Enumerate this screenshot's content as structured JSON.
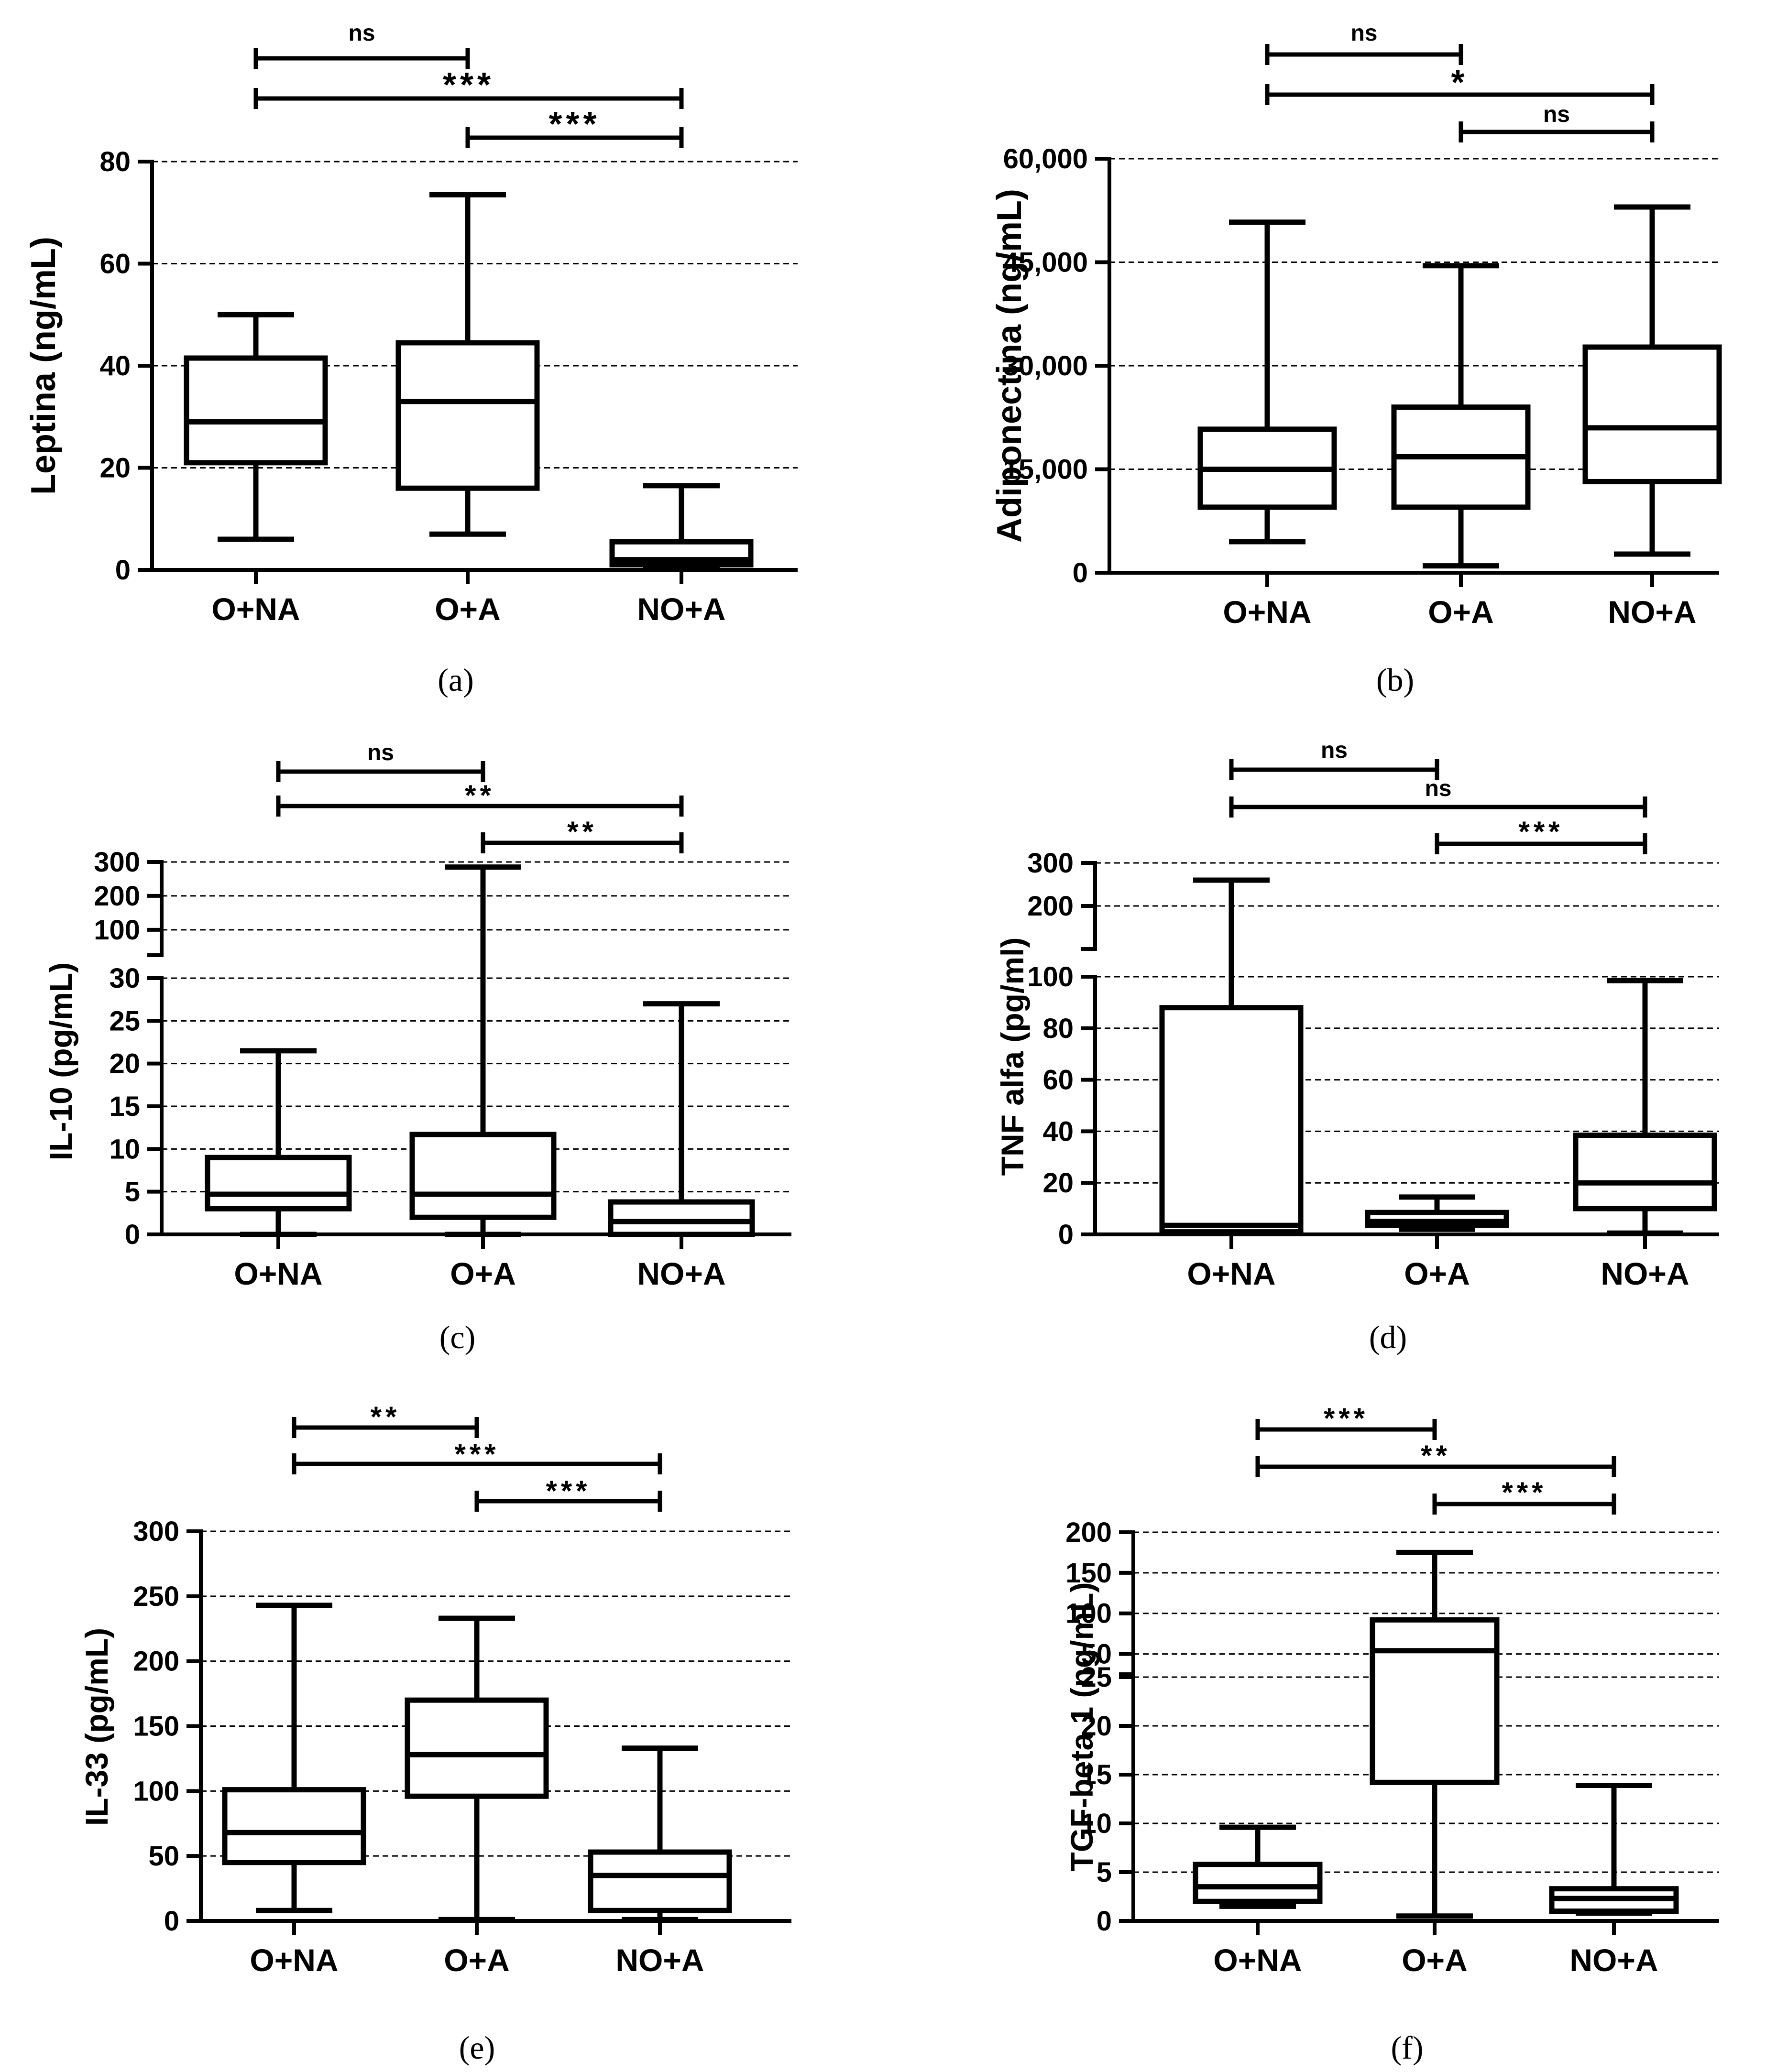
{
  "chart_data": [
    {
      "type": "box",
      "panel": "(a)",
      "ylabel": "Leptina (ng/mL)",
      "categories": [
        "O+NA",
        "O+A",
        "NO+A"
      ],
      "yticks": [
        0,
        20,
        40,
        60,
        80
      ],
      "ylim": [
        0,
        80
      ],
      "grid": true,
      "boxes": [
        {
          "min": 6,
          "q1": 21,
          "median": 29,
          "q3": 41.5,
          "max": 50
        },
        {
          "min": 7,
          "q1": 16,
          "median": 33,
          "q3": 44.5,
          "max": 73.5
        },
        {
          "min": 0.5,
          "q1": 1,
          "median": 2,
          "q3": 5.5,
          "max": 16.5
        }
      ],
      "significance": [
        {
          "from": 0,
          "to": 1,
          "label": "ns"
        },
        {
          "from": 0,
          "to": 2,
          "label": "***"
        },
        {
          "from": 1,
          "to": 2,
          "label": "***"
        }
      ]
    },
    {
      "type": "box",
      "panel": "(b)",
      "ylabel": "Adiponectina (ng/mL)",
      "categories": [
        "O+NA",
        "O+A",
        "NO+A"
      ],
      "yticks": [
        0,
        15000,
        30000,
        45000,
        60000
      ],
      "ytick_labels": [
        "0",
        "15,000",
        "30,000",
        "45,000",
        "60,000"
      ],
      "ylim": [
        0,
        60000
      ],
      "grid": true,
      "boxes": [
        {
          "min": 4500,
          "q1": 9500,
          "median": 15000,
          "q3": 20800,
          "max": 50800
        },
        {
          "min": 1000,
          "q1": 9500,
          "median": 16800,
          "q3": 24000,
          "max": 44500
        },
        {
          "min": 2700,
          "q1": 13200,
          "median": 21000,
          "q3": 32700,
          "max": 53000
        }
      ],
      "significance": [
        {
          "from": 0,
          "to": 1,
          "label": "ns"
        },
        {
          "from": 0,
          "to": 2,
          "label": "*"
        },
        {
          "from": 1,
          "to": 2,
          "label": "ns"
        }
      ]
    },
    {
      "type": "box",
      "panel": "(c)",
      "ylabel": "IL-10 (pg/mL)",
      "categories": [
        "O+NA",
        "O+A",
        "NO+A"
      ],
      "segments": [
        {
          "yticks": [
            0,
            5,
            10,
            15,
            20,
            25,
            30
          ],
          "ylim": [
            0,
            30
          ]
        },
        {
          "yticks": [
            100,
            200,
            300
          ],
          "ylim": [
            25,
            300
          ]
        }
      ],
      "grid": true,
      "boxes": [
        {
          "min": 0,
          "q1": 3,
          "median": 4.7,
          "q3": 9,
          "max": 21.5
        },
        {
          "min": 0,
          "q1": 2,
          "median": 4.7,
          "q3": 11.7,
          "max": 285
        },
        {
          "min": 0,
          "q1": 0,
          "median": 1.5,
          "q3": 3.8,
          "max": 27
        }
      ],
      "significance": [
        {
          "from": 0,
          "to": 1,
          "label": "ns"
        },
        {
          "from": 0,
          "to": 2,
          "label": "**"
        },
        {
          "from": 1,
          "to": 2,
          "label": "**"
        }
      ]
    },
    {
      "type": "box",
      "panel": "(d)",
      "ylabel": "TNF alfa (pg/ml)",
      "categories": [
        "O+NA",
        "O+A",
        "NO+A"
      ],
      "segments": [
        {
          "yticks": [
            0,
            20,
            40,
            60,
            80,
            100
          ],
          "ylim": [
            0,
            100
          ]
        },
        {
          "yticks": [
            200,
            300
          ],
          "ylim": [
            100,
            300
          ]
        }
      ],
      "grid": true,
      "boxes": [
        {
          "min": 0.5,
          "q1": 1,
          "median": 3.5,
          "q3": 88,
          "max": 260
        },
        {
          "min": 2,
          "q1": 3.5,
          "median": 5,
          "q3": 8.5,
          "max": 14.5
        },
        {
          "min": 0.5,
          "q1": 10,
          "median": 20,
          "q3": 38.5,
          "max": 98.5
        }
      ],
      "significance": [
        {
          "from": 0,
          "to": 1,
          "label": "ns"
        },
        {
          "from": 0,
          "to": 2,
          "label": "ns"
        },
        {
          "from": 1,
          "to": 2,
          "label": "***"
        }
      ]
    },
    {
      "type": "box",
      "panel": "(e)",
      "ylabel": "IL-33 (pg/mL)",
      "categories": [
        "O+NA",
        "O+A",
        "NO+A"
      ],
      "yticks": [
        0,
        50,
        100,
        150,
        200,
        250,
        300
      ],
      "ylim": [
        0,
        300
      ],
      "grid": true,
      "boxes": [
        {
          "min": 8,
          "q1": 45,
          "median": 68,
          "q3": 101,
          "max": 243
        },
        {
          "min": 1,
          "q1": 96,
          "median": 128,
          "q3": 170,
          "max": 233
        },
        {
          "min": 1,
          "q1": 8,
          "median": 35,
          "q3": 53,
          "max": 133
        }
      ],
      "significance": [
        {
          "from": 0,
          "to": 1,
          "label": "**"
        },
        {
          "from": 0,
          "to": 2,
          "label": "***"
        },
        {
          "from": 1,
          "to": 2,
          "label": "***"
        }
      ]
    },
    {
      "type": "box",
      "panel": "(f)",
      "ylabel": "TGF-beta 1 (ng/mL)",
      "categories": [
        "O+NA",
        "O+A",
        "NO+A"
      ],
      "segments": [
        {
          "yticks": [
            0,
            5,
            10,
            15,
            20,
            25
          ],
          "ylim": [
            0,
            25
          ]
        },
        {
          "yticks": [
            50,
            100,
            150,
            200
          ],
          "ylim": [
            25,
            200
          ]
        }
      ],
      "grid": true,
      "boxes": [
        {
          "min": 1.5,
          "q1": 2,
          "median": 3.5,
          "q3": 5.8,
          "max": 9.6
        },
        {
          "min": 0.5,
          "q1": 14.2,
          "median": 54,
          "q3": 92,
          "max": 175
        },
        {
          "min": 0.8,
          "q1": 1,
          "median": 2.3,
          "q3": 3.3,
          "max": 13.9
        }
      ],
      "significance": [
        {
          "from": 0,
          "to": 1,
          "label": "***"
        },
        {
          "from": 0,
          "to": 2,
          "label": "**"
        },
        {
          "from": 1,
          "to": 2,
          "label": "***"
        }
      ]
    }
  ]
}
